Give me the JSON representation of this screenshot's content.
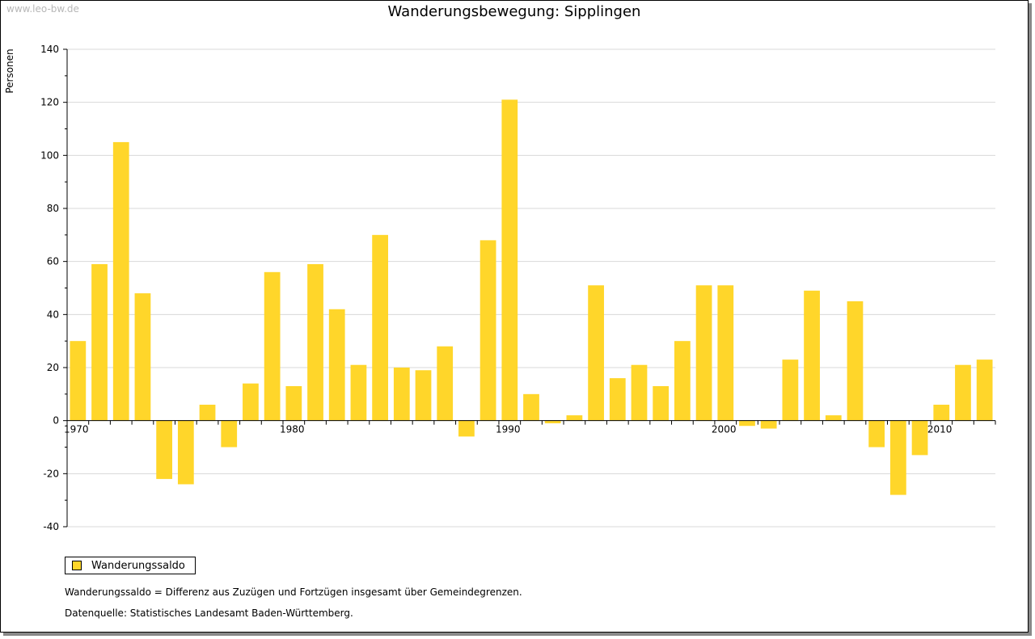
{
  "watermark": "www.leo-bw.de",
  "title": "Wanderungsbewegung: Sipplingen",
  "legend": {
    "label": "Wanderungssaldo"
  },
  "notes": {
    "definition": "Wanderungssaldo = Differenz aus Zuzügen und Fortzügen insgesamt über Gemeindegrenzen.",
    "source": "Datenquelle: Statistisches Landesamt Baden-Württemberg."
  },
  "colors": {
    "bar": "#FFD62A",
    "grid": "#d8d8d8",
    "axis": "#000000"
  },
  "chart_data": {
    "type": "bar",
    "title": "Wanderungsbewegung: Sipplingen",
    "xlabel": "",
    "ylabel": "Personen",
    "ylim": [
      -40,
      140
    ],
    "yticks": [
      140,
      120,
      100,
      80,
      60,
      40,
      20,
      0,
      -20,
      -40
    ],
    "xtick_labels": [
      "1970",
      "1980",
      "1990",
      "2000",
      "2010"
    ],
    "grid": true,
    "legend_position": "bottom-left",
    "series": [
      {
        "name": "Wanderungssaldo",
        "x": [
          1970,
          1971,
          1972,
          1973,
          1974,
          1975,
          1976,
          1977,
          1978,
          1979,
          1980,
          1981,
          1982,
          1983,
          1984,
          1985,
          1986,
          1987,
          1988,
          1989,
          1990,
          1991,
          1992,
          1993,
          1994,
          1995,
          1996,
          1997,
          1998,
          1999,
          2000,
          2001,
          2002,
          2003,
          2004,
          2005,
          2006,
          2007,
          2008,
          2009,
          2010,
          2011,
          2012
        ],
        "values": [
          30,
          59,
          105,
          48,
          -22,
          -24,
          6,
          -10,
          14,
          56,
          13,
          59,
          42,
          21,
          70,
          20,
          19,
          28,
          -6,
          68,
          121,
          10,
          -1,
          2,
          51,
          16,
          21,
          13,
          30,
          51,
          51,
          -2,
          -3,
          23,
          49,
          2,
          45,
          -10,
          -28,
          -13,
          6,
          21,
          23
        ]
      }
    ]
  }
}
